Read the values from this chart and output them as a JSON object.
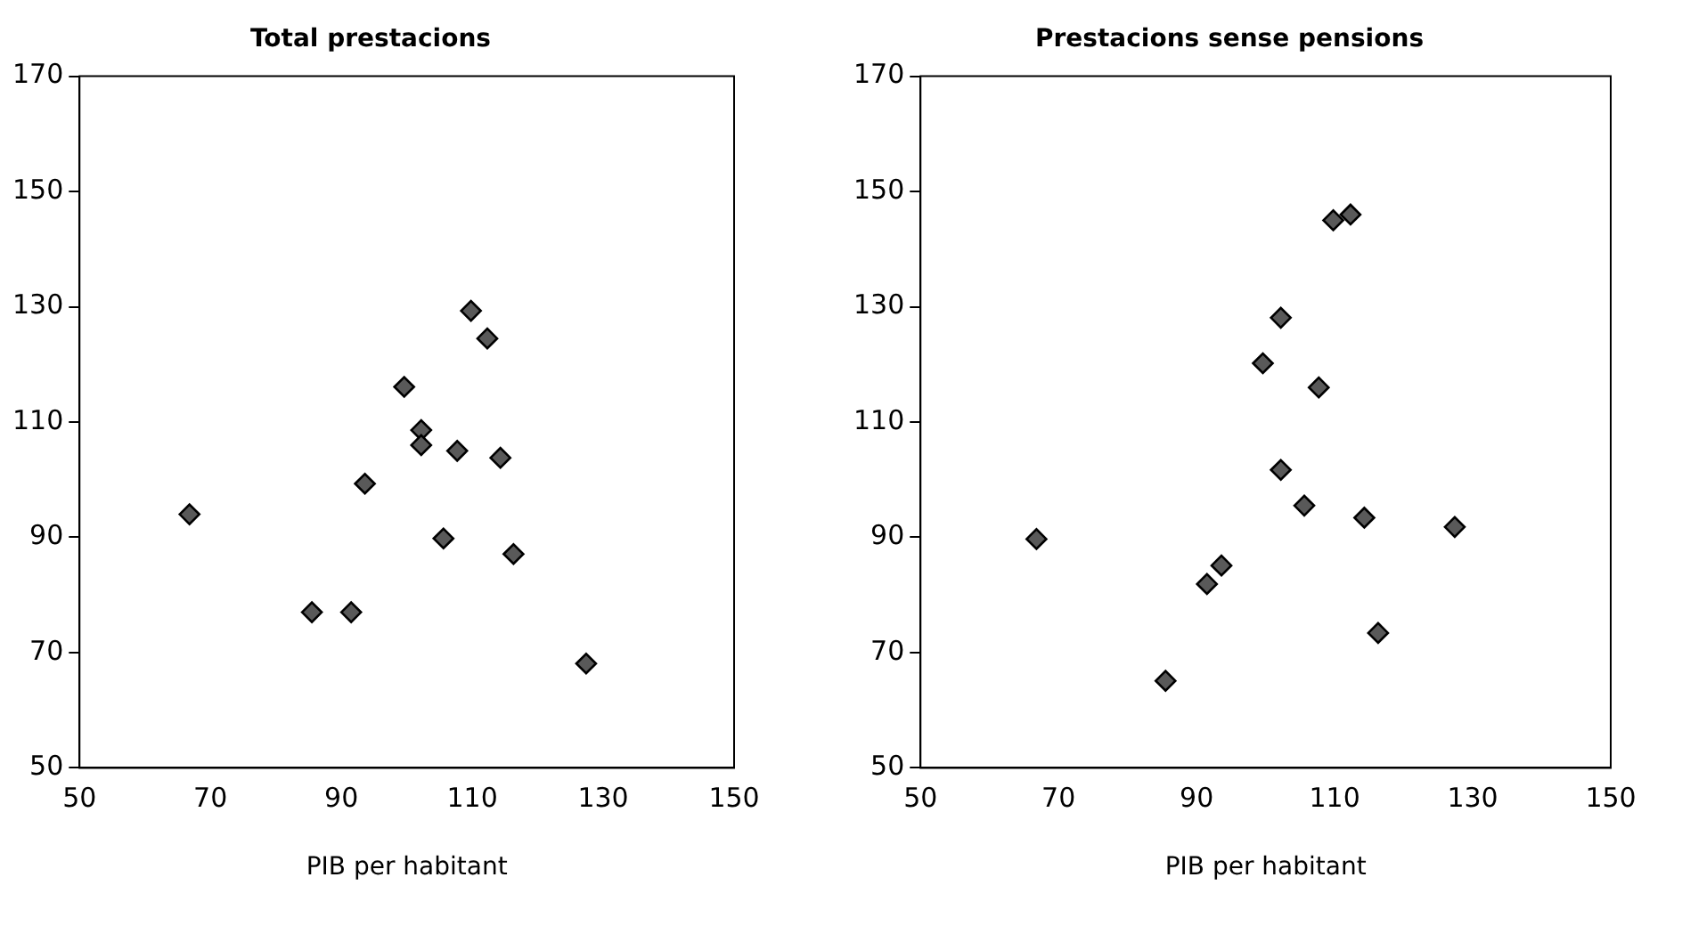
{
  "chart_data": [
    {
      "type": "scatter",
      "title": "Total prestacions",
      "xlabel": "PIB per habitant",
      "marker": "diamond",
      "grid": false,
      "legend": false,
      "xlim": [
        50,
        150
      ],
      "xticks": [
        50,
        70,
        90,
        110,
        130,
        150
      ],
      "ylim": [
        50,
        170
      ],
      "yticks": [
        50,
        70,
        90,
        110,
        130,
        150,
        170
      ],
      "series": [
        {
          "color": "#595959",
          "x": [
            66.8,
            109.8,
            112.3,
            99.6,
            102.2,
            102.2,
            107.7,
            114.3,
            93.6,
            105.6,
            116.3,
            85.5,
            91.5,
            127.4
          ],
          "values": [
            94,
            129.3,
            124.5,
            116.1,
            108.6,
            106,
            105,
            103.8,
            99.3,
            89.8,
            87.1,
            77,
            77,
            68.1
          ]
        }
      ]
    },
    {
      "type": "scatter",
      "title": "Prestacions sense pensions",
      "xlabel": "PIB per habitant",
      "marker": "diamond",
      "grid": false,
      "legend": false,
      "xlim": [
        50,
        150
      ],
      "xticks": [
        50,
        70,
        90,
        110,
        130,
        150
      ],
      "ylim": [
        50,
        170
      ],
      "yticks": [
        50,
        70,
        90,
        110,
        130,
        150,
        170
      ],
      "series": [
        {
          "color": "#595959",
          "x": [
            66.8,
            109.8,
            112.3,
            102.2,
            99.6,
            107.7,
            102.2,
            105.6,
            114.3,
            127.4,
            93.6,
            91.5,
            116.3,
            85.5
          ],
          "values": [
            89.7,
            145,
            146,
            128.1,
            120.2,
            116,
            101.7,
            95.5,
            93.4,
            91.8,
            85.1,
            81.9,
            73.4,
            65.1
          ]
        }
      ]
    }
  ]
}
